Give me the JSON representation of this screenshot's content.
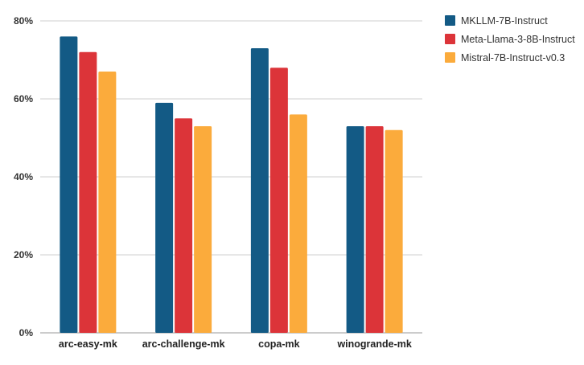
{
  "chart_data": {
    "type": "bar",
    "title": "",
    "xlabel": "",
    "ylabel": "",
    "ylim": [
      0,
      80
    ],
    "yticks": [
      "0%",
      "20%",
      "40%",
      "60%",
      "80%"
    ],
    "ytick_values": [
      0,
      20,
      40,
      60,
      80
    ],
    "grid": true,
    "legend_position": "top-right",
    "categories": [
      "arc-easy-mk",
      "arc-challenge-mk",
      "copa-mk",
      "winogrande-mk"
    ],
    "series": [
      {
        "name": "MKLLM-7B-Instruct",
        "color": "#135a85",
        "values": [
          76,
          59,
          73,
          53
        ]
      },
      {
        "name": "Meta-Llama-3-8B-Instruct",
        "color": "#dc3439",
        "values": [
          72,
          55,
          68,
          53
        ]
      },
      {
        "name": "Mistral-7B-Instruct-v0.3",
        "color": "#fbab3c",
        "values": [
          67,
          53,
          56,
          52
        ]
      }
    ]
  }
}
